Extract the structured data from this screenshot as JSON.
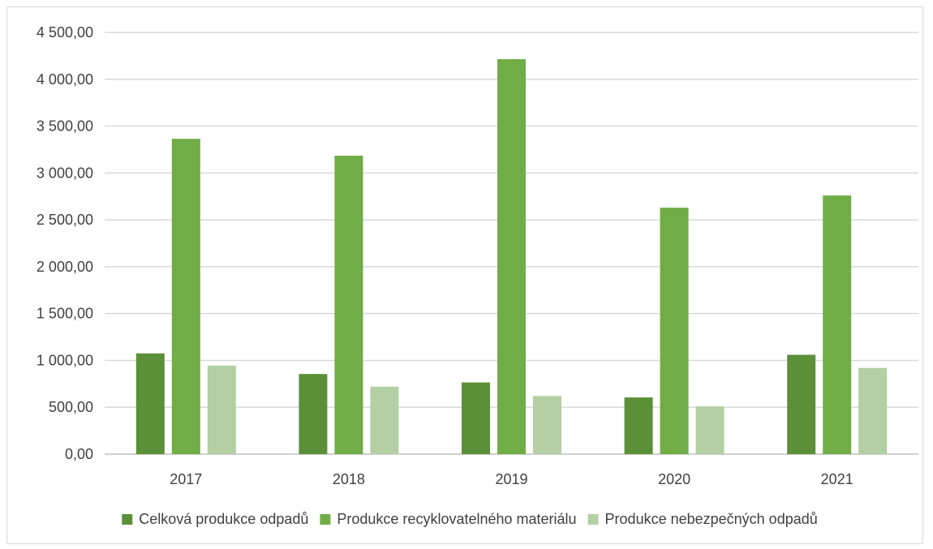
{
  "chart_data": {
    "type": "bar",
    "categories": [
      "2017",
      "2018",
      "2019",
      "2020",
      "2021"
    ],
    "series": [
      {
        "name": "Celková produkce odpadů",
        "color": "#5b8f38",
        "values": [
          1075,
          855,
          765,
          605,
          1060
        ]
      },
      {
        "name": "Produkce recyklovatelného materiálu",
        "color": "#70ad47",
        "values": [
          3365,
          3185,
          4215,
          2630,
          2760
        ]
      },
      {
        "name": "Produkce nebezpečných odpadů",
        "color": "#b4cfa3",
        "values": [
          945,
          720,
          620,
          510,
          920
        ]
      }
    ],
    "y_ticks": [
      "0,00",
      "500,00",
      "1 000,00",
      "1 500,00",
      "2 000,00",
      "2 500,00",
      "3 000,00",
      "3 500,00",
      "4 000,00",
      "4 500,00"
    ],
    "ylim": [
      0,
      4500
    ],
    "y_step": 500,
    "grid": true,
    "legend_position": "bottom"
  }
}
